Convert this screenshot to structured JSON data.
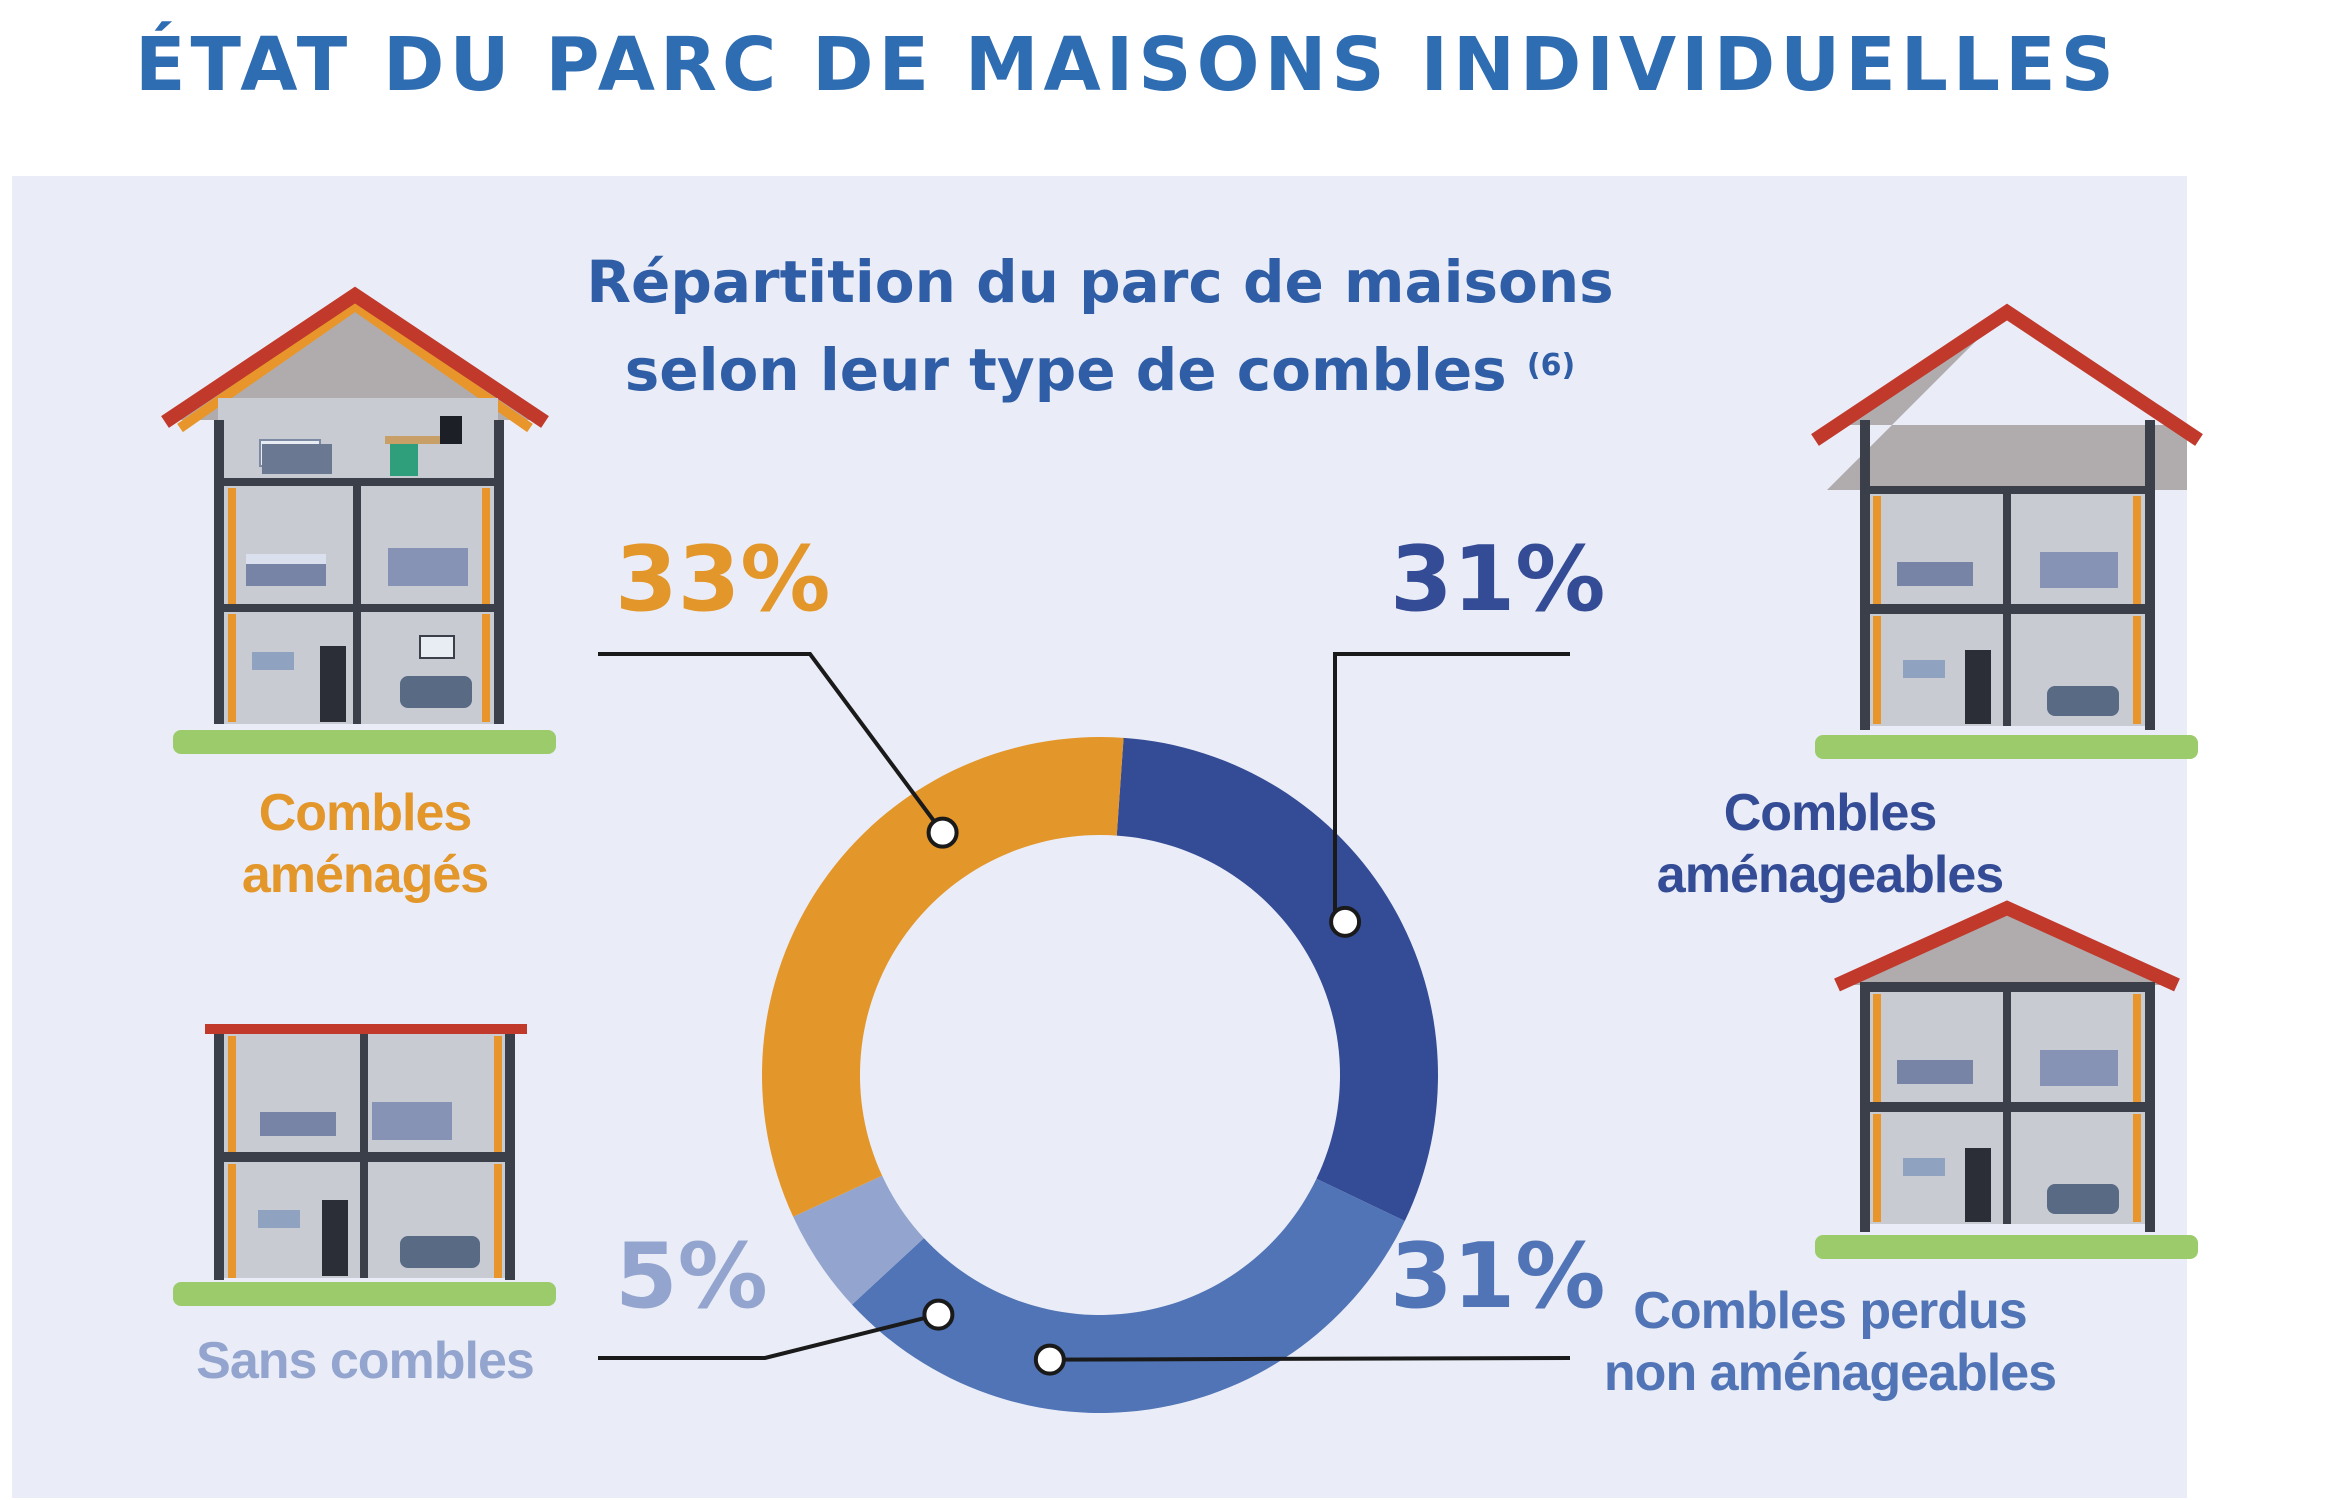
{
  "title": "ÉTAT DU PARC DE MAISONS INDIVIDUELLES",
  "chart_data": {
    "type": "pie",
    "donut": true,
    "title_line1": "Répartition du parc de maisons",
    "title_line2": "selon leur type de combles",
    "title_note": "(6)",
    "slices": [
      {
        "label": "Combles aménageables",
        "value": 31,
        "display": "31%",
        "color": "#344b95"
      },
      {
        "label": "Combles perdus non aménageables",
        "value": 31,
        "display": "31%",
        "color": "#5074b6"
      },
      {
        "label": "Sans combles",
        "value": 5,
        "display": "5%",
        "color": "#93a5ce"
      },
      {
        "label": "Combles aménagés",
        "value": 33,
        "display": "33%",
        "color": "#e3962a"
      }
    ]
  },
  "labels": {
    "amenages": "Combles aménagés",
    "amenageables": "Combles aménageables",
    "perdus_line1": "Combles perdus",
    "perdus_line2": "non aménageables",
    "sans": "Sans combles"
  },
  "colors": {
    "title": "#2f6db3",
    "roof": "#c0392b",
    "wall": "#3a3f4a",
    "interior": "#c9cbd2",
    "grass": "#9bcb6b",
    "insulation": "#e8962c"
  },
  "icons": [
    "house-amenages-icon",
    "house-amenageables-icon",
    "house-perdus-icon",
    "house-sans-combles-icon"
  ]
}
